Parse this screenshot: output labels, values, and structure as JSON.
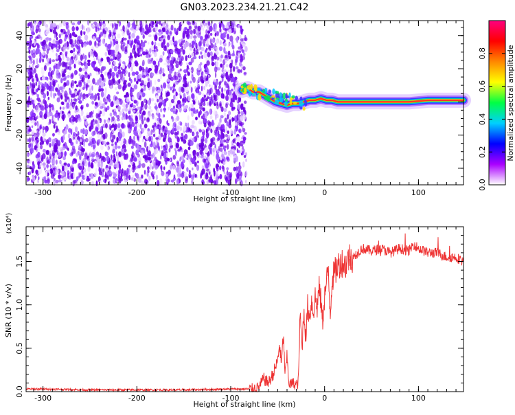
{
  "title": "GN03.2023.234.21.21.C42",
  "chart_data": [
    {
      "type": "heatmap",
      "xlabel": "Height of straight line (km)",
      "ylabel": "Frequency (Hz)",
      "xlim": [
        -318,
        148
      ],
      "ylim": [
        -50,
        49
      ],
      "xticks": [
        -300,
        -200,
        -100,
        0,
        100
      ],
      "yticks": [
        -40,
        -20,
        0,
        20,
        40
      ],
      "xticklabels": [
        "-300",
        "-200",
        "-100",
        "0",
        "100"
      ],
      "yticklabels": [
        "-40",
        "-20",
        "0",
        "20",
        "40"
      ],
      "noise_region_x": [
        -318,
        -82
      ],
      "signal_track": {
        "x": [
          -88,
          -82,
          -76,
          -70,
          -64,
          -58,
          -52,
          -46,
          -40,
          -34,
          -28,
          -22,
          -16,
          -10,
          -4,
          2,
          8,
          14,
          30,
          60,
          90,
          110,
          120,
          130,
          148
        ],
        "y": [
          7,
          8,
          6,
          6,
          4,
          2,
          0,
          -1,
          -2,
          -1,
          -1,
          0,
          1,
          1,
          2,
          1,
          1,
          0,
          0,
          0,
          0,
          1,
          1,
          1,
          1
        ]
      },
      "colorbar": {
        "label": "Normalized spectral amplitude",
        "ticks": [
          0.0,
          0.2,
          0.4,
          0.6,
          0.8
        ],
        "ticklabels": [
          "0.0",
          "0.2",
          "0.4",
          "0.6",
          "0.8"
        ],
        "range": [
          0,
          1
        ],
        "colors": [
          "#ffffff",
          "#aa00ff",
          "#0000ff",
          "#00d0ff",
          "#00ff44",
          "#ffff00",
          "#ff8800",
          "#ff0000",
          "#ff0080"
        ]
      }
    },
    {
      "type": "line",
      "xlabel": "Height of straight line (km)",
      "ylabel": "SNR (10 * v/v)",
      "scale_label": "(x10⁴)",
      "xlim": [
        -318,
        148
      ],
      "ylim": [
        0,
        1.9
      ],
      "xticks": [
        -300,
        -200,
        -100,
        0,
        100
      ],
      "yticks": [
        0.0,
        0.5,
        1.0,
        1.5
      ],
      "xticklabels": [
        "-300",
        "-200",
        "-100",
        "0",
        "100"
      ],
      "yticklabels": [
        "0.0",
        "0.5",
        "1.0",
        "1.5"
      ],
      "line_color": "#ee3333",
      "series": [
        {
          "x": [
            -318,
            -300,
            -250,
            -200,
            -150,
            -100,
            -80,
            -70,
            -65,
            -60,
            -55,
            -50,
            -48,
            -46,
            -44,
            -42,
            -40,
            -38,
            -36,
            -34,
            -30,
            -28,
            -26,
            -24,
            -22,
            -20,
            -18,
            -16,
            -14,
            -12,
            -10,
            -8,
            -6,
            -4,
            -2,
            0,
            2,
            4,
            6,
            8,
            10,
            14,
            18,
            22,
            26,
            30,
            35,
            40,
            50,
            60,
            70,
            80,
            90,
            95,
            100,
            110,
            120,
            130,
            140,
            148
          ],
          "y": [
            0.03,
            0.03,
            0.02,
            0.02,
            0.02,
            0.03,
            0.03,
            0.05,
            0.15,
            0.1,
            0.2,
            0.35,
            0.55,
            0.3,
            0.65,
            0.2,
            0.4,
            0.1,
            0.08,
            0.1,
            0.08,
            0.1,
            0.9,
            0.5,
            0.95,
            0.6,
            1.0,
            0.85,
            1.05,
            0.9,
            1.1,
            0.95,
            1.2,
            1.05,
            0.8,
            1.1,
            1.25,
            1.4,
            0.9,
            1.3,
            1.35,
            1.45,
            1.5,
            1.45,
            1.55,
            1.55,
            1.6,
            1.65,
            1.62,
            1.65,
            1.6,
            1.65,
            1.62,
            1.7,
            1.65,
            1.6,
            1.6,
            1.55,
            1.55,
            1.5
          ]
        }
      ]
    }
  ]
}
